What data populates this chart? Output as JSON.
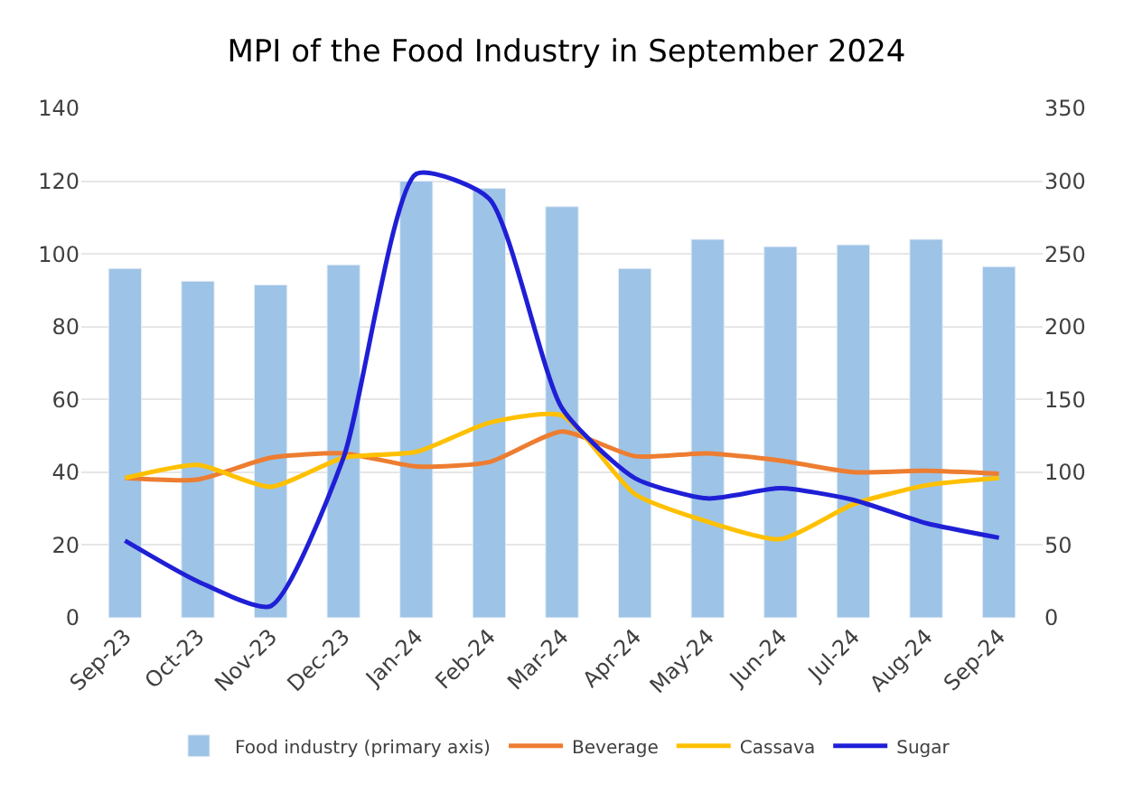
{
  "chart_data": {
    "type": "bar",
    "title": "MPI of the Food Industry in September 2024",
    "categories": [
      "Sep-23",
      "Oct-23",
      "Nov-23",
      "Dec-23",
      "Jan-24",
      "Feb-24",
      "Mar-24",
      "Apr-24",
      "May-24",
      "Jun-24",
      "Jul-24",
      "Aug-24",
      "Sep-24"
    ],
    "series": [
      {
        "name": "Food industry (primary axis)",
        "color": "#9dc3e6",
        "values": [
          96,
          92.5,
          91.5,
          97,
          120,
          118,
          113,
          96,
          104,
          102,
          102.5,
          104,
          96.5
        ]
      },
      {
        "name": "Beverage",
        "type": "line",
        "axis": "y2",
        "color": "#ed7d31",
        "values": [
          96,
          95,
          110,
          113,
          104,
          107,
          128,
          111,
          113,
          108,
          100,
          101,
          99
        ]
      },
      {
        "name": "Cassava",
        "type": "line",
        "axis": "y2",
        "color": "#ffc000",
        "values": [
          96,
          105,
          90,
          110,
          114,
          134,
          139,
          85,
          66,
          54,
          78,
          91,
          96
        ]
      },
      {
        "name": "Sugar",
        "type": "line",
        "axis": "y2",
        "color": "#1f1fd6",
        "values": [
          53,
          25,
          8,
          110,
          305,
          288,
          144,
          96,
          82,
          89,
          81,
          65,
          55
        ]
      }
    ],
    "ylim": [
      0,
      140
    ],
    "yticks": [
      0,
      20,
      40,
      60,
      80,
      100,
      120,
      140
    ],
    "y2lim": [
      0,
      350
    ],
    "y2ticks": [
      0,
      50,
      100,
      150,
      200,
      250,
      300,
      350
    ],
    "grid": "y",
    "legend": "bottom",
    "marker": "none",
    "line_style": "solid"
  }
}
